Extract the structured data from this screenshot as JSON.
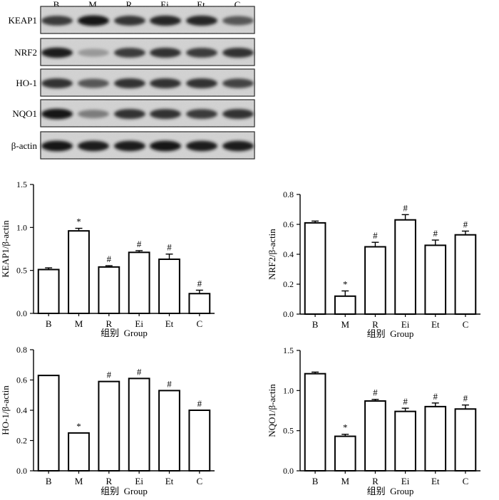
{
  "blot": {
    "lanes": [
      "B",
      "M",
      "R",
      "Ei",
      "Et",
      "C"
    ],
    "proteins": [
      "KEAP1",
      "NRF2",
      "HO-1",
      "NQO1",
      "β-actin"
    ],
    "band_intensity": {
      "KEAP1": [
        0.75,
        0.95,
        0.78,
        0.85,
        0.85,
        0.6
      ],
      "NRF2": [
        0.9,
        0.25,
        0.75,
        0.8,
        0.75,
        0.8
      ],
      "HO-1": [
        0.8,
        0.6,
        0.8,
        0.8,
        0.8,
        0.7
      ],
      "NQO1": [
        0.95,
        0.4,
        0.8,
        0.8,
        0.75,
        0.8
      ],
      "β-actin": [
        0.95,
        0.9,
        0.9,
        0.95,
        0.9,
        0.9
      ]
    }
  },
  "chart_data": [
    {
      "type": "bar",
      "categories": [
        "B",
        "M",
        "R",
        "Ei",
        "Et",
        "C"
      ],
      "values": [
        0.51,
        0.96,
        0.54,
        0.71,
        0.63,
        0.23
      ],
      "errors": [
        0.02,
        0.03,
        0.015,
        0.02,
        0.06,
        0.04
      ],
      "marks": [
        "",
        "*",
        "#",
        "#",
        "#",
        "#"
      ],
      "ylabel": "KEAP1/β-actin",
      "xlabel": "组别  Group",
      "ylim": [
        0,
        1.5
      ],
      "yticks": [
        "0.0",
        "0.5",
        "1.0",
        "1.5"
      ]
    },
    {
      "type": "bar",
      "categories": [
        "B",
        "M",
        "R",
        "Ei",
        "Et",
        "C"
      ],
      "values": [
        0.61,
        0.12,
        0.45,
        0.63,
        0.46,
        0.53
      ],
      "errors": [
        0.012,
        0.035,
        0.03,
        0.035,
        0.035,
        0.025
      ],
      "marks": [
        "",
        "*",
        "#",
        "#",
        "#",
        "#"
      ],
      "ylabel": "NRF2/β-actin",
      "xlabel": "组别  Group",
      "ylim": [
        0,
        0.8
      ],
      "yticks": [
        "0.0",
        "0.2",
        "0.4",
        "0.6",
        "0.8"
      ]
    },
    {
      "type": "bar",
      "categories": [
        "B",
        "M",
        "R",
        "Ei",
        "Et",
        "C"
      ],
      "values": [
        0.63,
        0.25,
        0.59,
        0.61,
        0.53,
        0.4
      ],
      "errors": [
        0,
        0,
        0,
        0,
        0,
        0
      ],
      "marks": [
        "",
        "*",
        "#",
        "#",
        "#",
        "#"
      ],
      "ylabel": "HO-1/β-actin",
      "xlabel": "组别  Group",
      "ylim": [
        0,
        0.8
      ],
      "yticks": [
        "0.0",
        "0.2",
        "0.4",
        "0.6",
        "0.8"
      ]
    },
    {
      "type": "bar",
      "categories": [
        "B",
        "M",
        "R",
        "Ei",
        "Et",
        "C"
      ],
      "values": [
        1.21,
        0.43,
        0.87,
        0.74,
        0.8,
        0.77
      ],
      "errors": [
        0.02,
        0.025,
        0.02,
        0.04,
        0.045,
        0.05
      ],
      "marks": [
        "",
        "*",
        "#",
        "#",
        "#",
        "#"
      ],
      "ylabel": "NQO1/β-actin",
      "xlabel": "组别  Group",
      "ylim": [
        0,
        1.5
      ],
      "yticks": [
        "0.0",
        "0.5",
        "1.0",
        "1.5"
      ]
    }
  ]
}
